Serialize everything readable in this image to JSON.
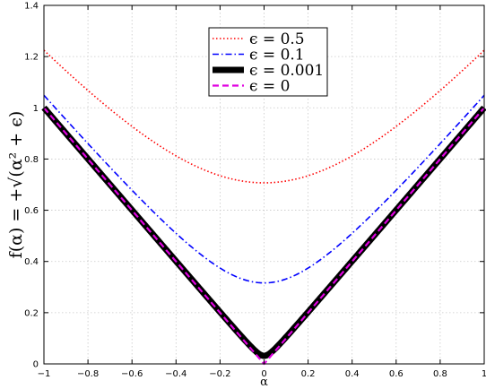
{
  "chart_data": {
    "type": "line",
    "xlabel": "α",
    "ylabel": "f(α) = +√(α² + ϵ)",
    "xlim": [
      -1,
      1
    ],
    "ylim": [
      0,
      1.4
    ],
    "x_ticks": [
      -1,
      -0.8,
      -0.6,
      -0.4,
      -0.2,
      0,
      0.2,
      0.4,
      0.6,
      0.8,
      1
    ],
    "x_tick_labels": [
      "−1",
      "−0.8",
      "−0.6",
      "−0.4",
      "−0.2",
      "0",
      "0.2",
      "0.4",
      "0.6",
      "0.8",
      "1"
    ],
    "y_ticks": [
      0,
      0.2,
      0.4,
      0.6,
      0.8,
      1,
      1.2,
      1.4
    ],
    "y_tick_labels": [
      "0",
      "0.2",
      "0.4",
      "0.6",
      "0.8",
      "1",
      "1.2",
      "1.4"
    ],
    "grid": true,
    "legend_position": "top-center",
    "series": [
      {
        "name": "ϵ = 0.5",
        "epsilon": 0.5,
        "color": "#ff0000",
        "style": "dotted"
      },
      {
        "name": "ϵ = 0.1",
        "epsilon": 0.1,
        "color": "#0000ff",
        "style": "dashdot"
      },
      {
        "name": "ϵ = 0.001",
        "epsilon": 0.001,
        "color": "#000000",
        "style": "solid-thick"
      },
      {
        "name": "ϵ = 0",
        "epsilon": 0,
        "color": "#e000e0",
        "style": "dashed"
      }
    ]
  }
}
